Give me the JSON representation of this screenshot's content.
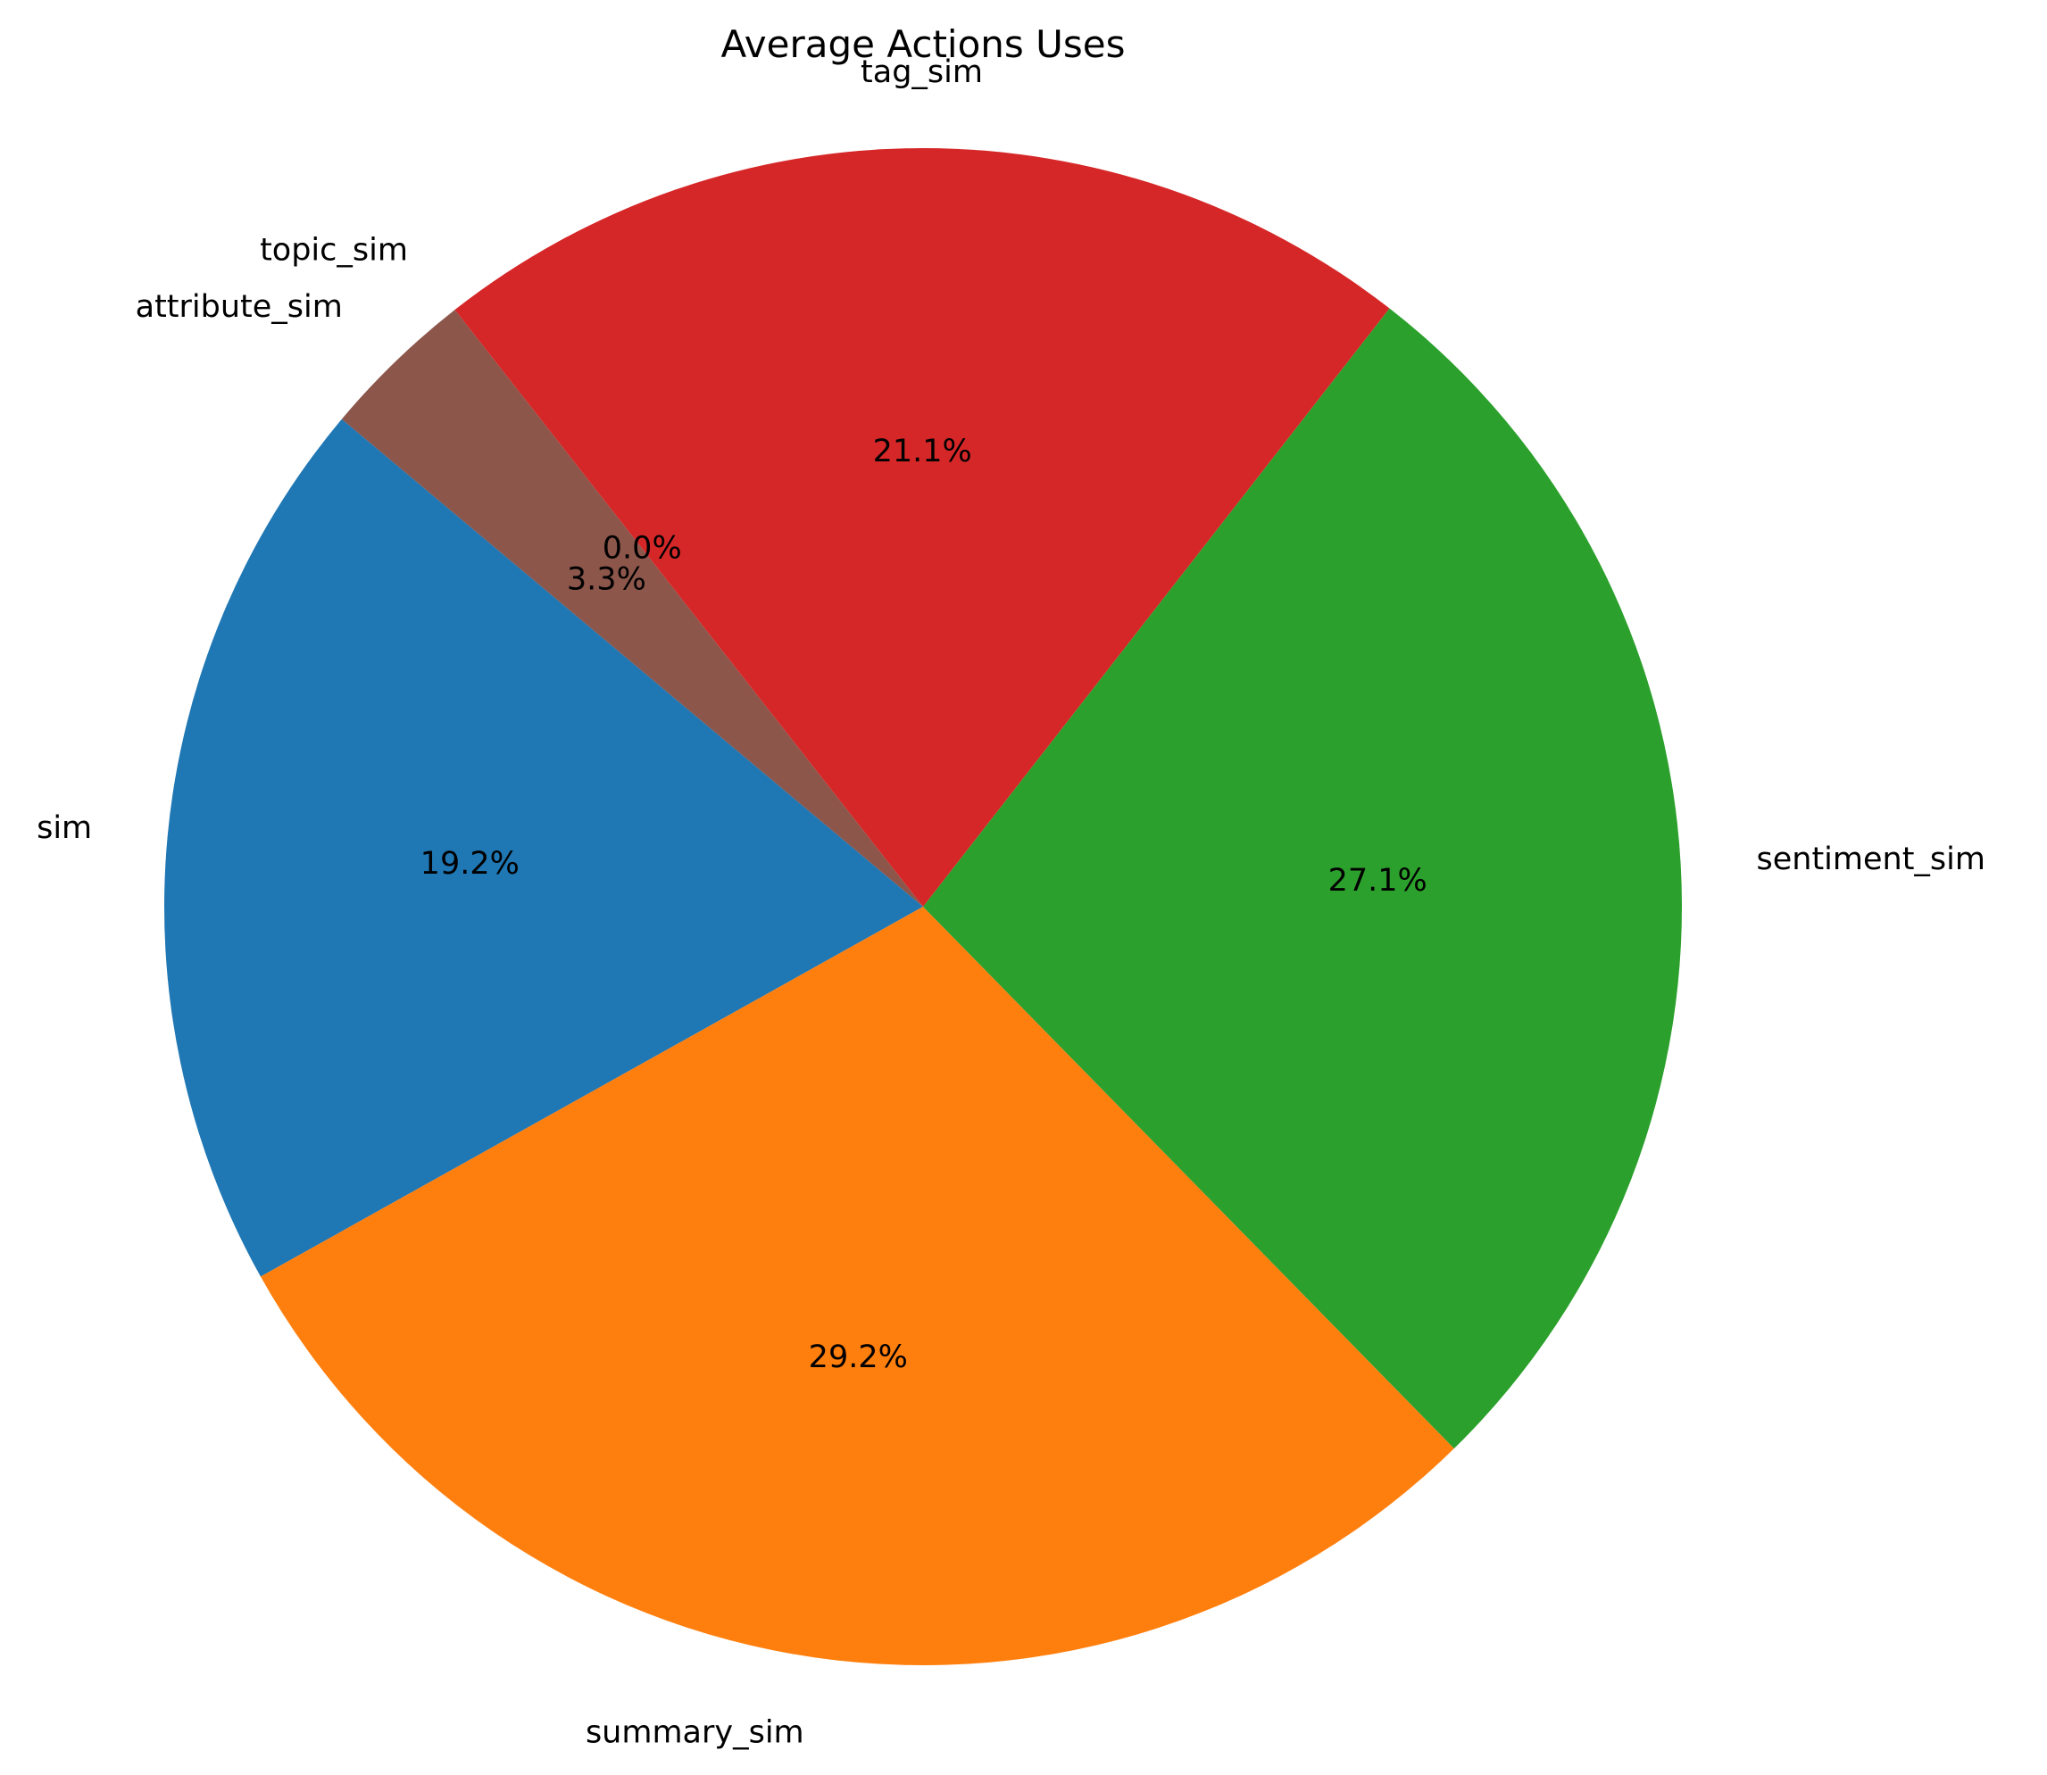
{
  "chart_data": {
    "type": "pie",
    "title": "Average Actions Uses",
    "start_angle_deg": 140,
    "direction": "counterclockwise",
    "slices": [
      {
        "label": "sim",
        "value": 19.2,
        "pct_label": "19.2%",
        "color": "#1f77b4"
      },
      {
        "label": "summary_sim",
        "value": 29.2,
        "pct_label": "29.2%",
        "color": "#ff7f0e"
      },
      {
        "label": "sentiment_sim",
        "value": 27.1,
        "pct_label": "27.1%",
        "color": "#2ca02c"
      },
      {
        "label": "tag_sim",
        "value": 21.1,
        "pct_label": "21.1%",
        "color": "#d62728"
      },
      {
        "label": "topic_sim",
        "value": 0.0,
        "pct_label": "0.0%",
        "color": "#9467bd"
      },
      {
        "label": "attribute_sim",
        "value": 3.3,
        "pct_label": "3.3%",
        "color": "#8c564b"
      }
    ]
  }
}
